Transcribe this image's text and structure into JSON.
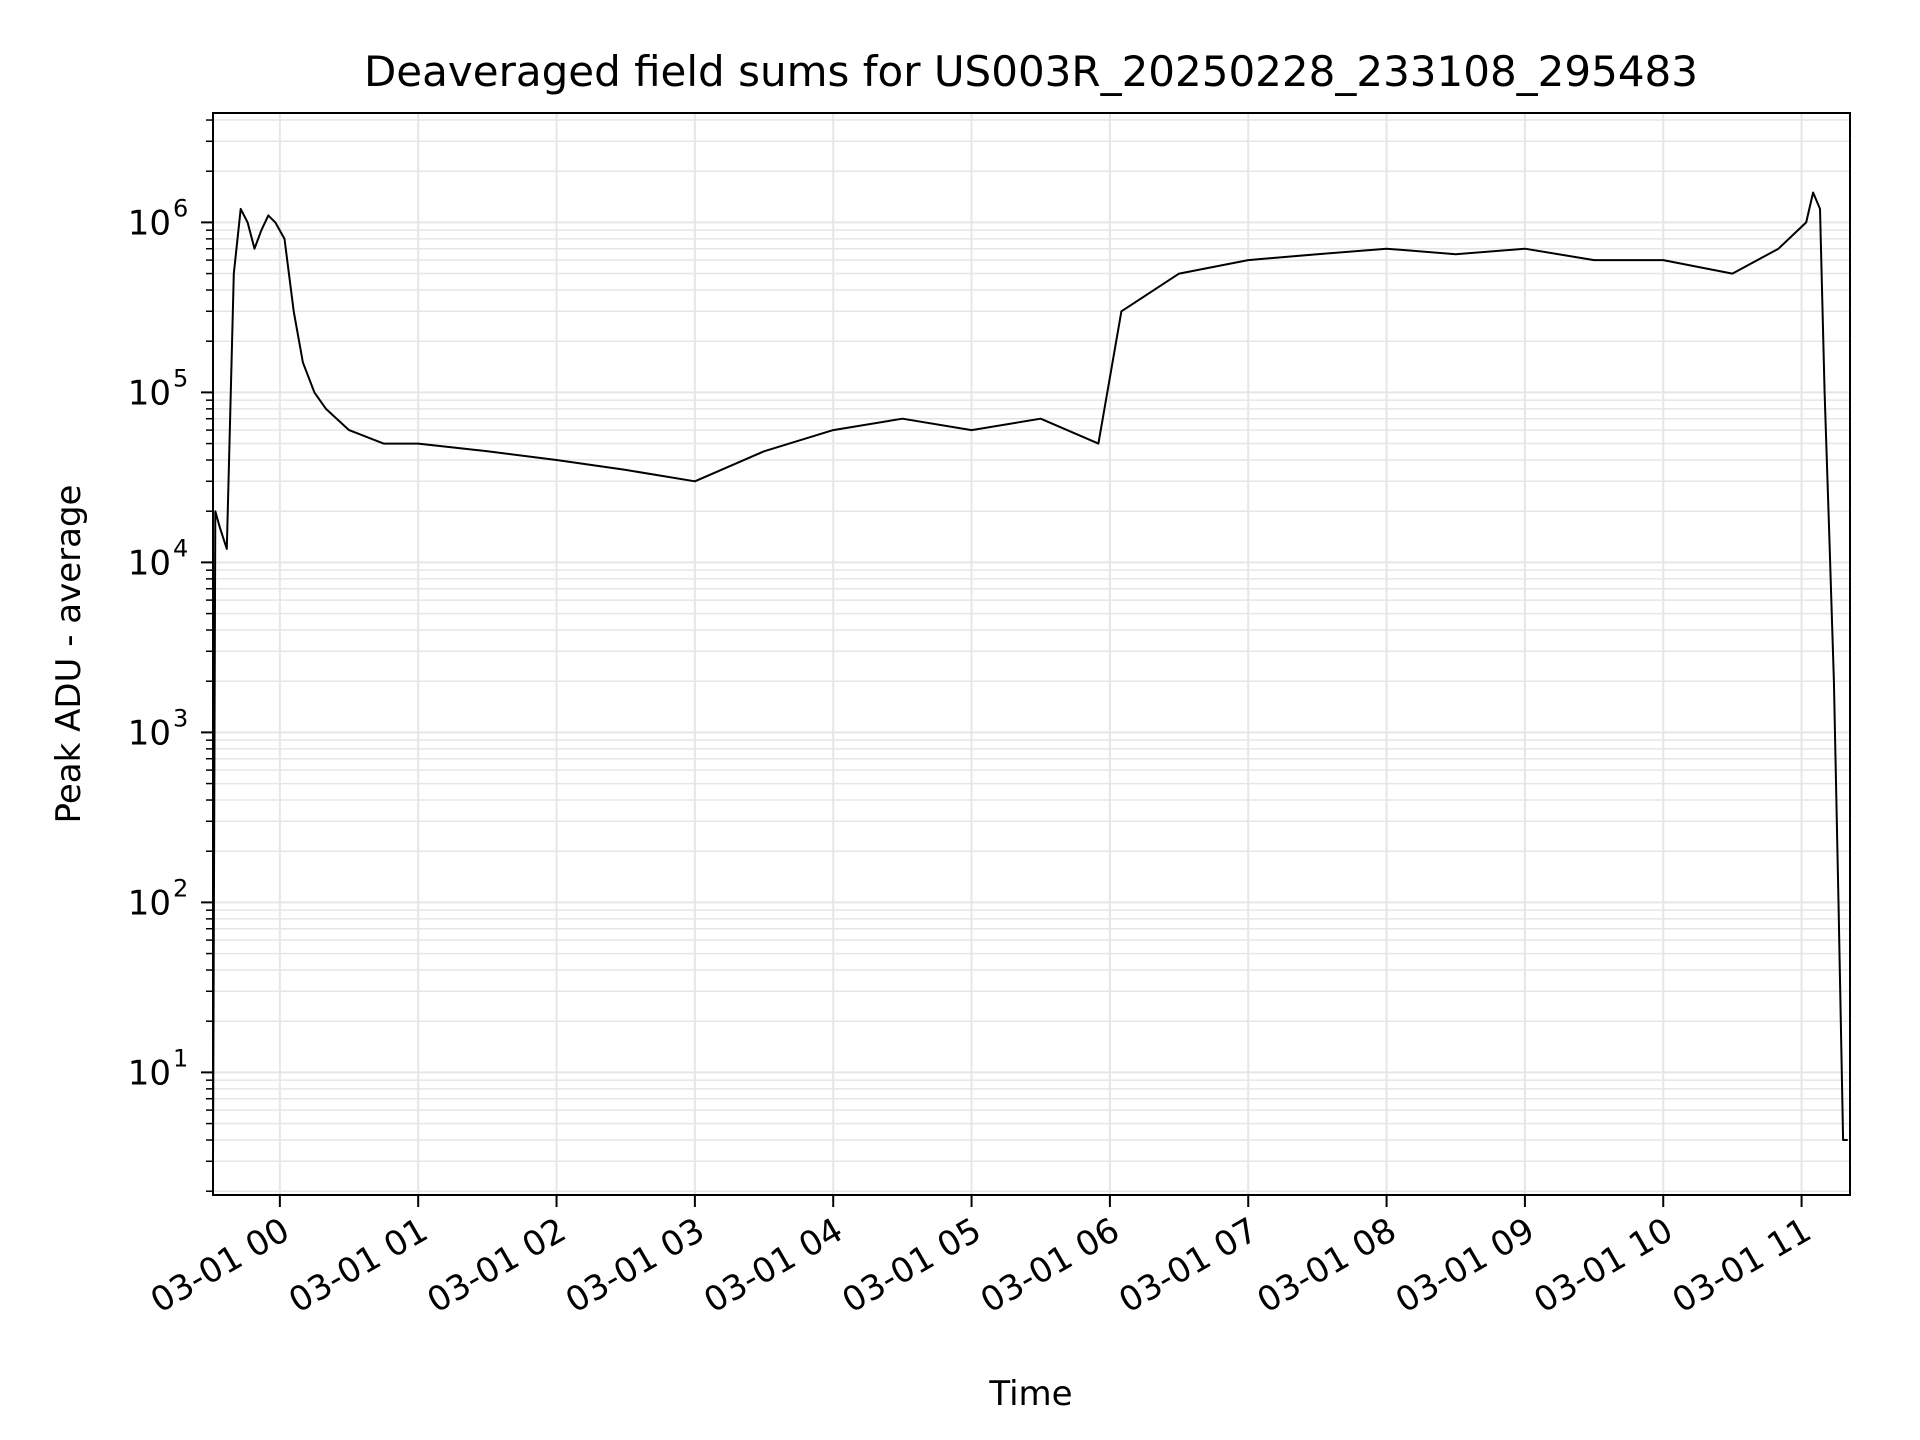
{
  "chart_data": {
    "type": "line",
    "title": "Deaveraged field sums for US003R_20250228_233108_295483",
    "xlabel": "Time",
    "ylabel": "Peak ADU - average",
    "yscale": "log",
    "ylim": [
      1.9,
      4400000
    ],
    "xlim": [
      "2025-02-28 23:31",
      "2025-03-01 11:21"
    ],
    "grid": true,
    "grid_color": "#e6e6e6",
    "line_color": "#000000",
    "x_tick_labels": [
      "03-01 00",
      "03-01 01",
      "03-01 02",
      "03-01 03",
      "03-01 04",
      "03-01 05",
      "03-01 06",
      "03-01 07",
      "03-01 08",
      "03-01 09",
      "03-01 10",
      "03-01 11"
    ],
    "y_tick_labels": [
      {
        "base": "10",
        "exp": "1"
      },
      {
        "base": "10",
        "exp": "2"
      },
      {
        "base": "10",
        "exp": "3"
      },
      {
        "base": "10",
        "exp": "4"
      },
      {
        "base": "10",
        "exp": "5"
      },
      {
        "base": "10",
        "exp": "6"
      }
    ],
    "series": [
      {
        "x": [
          "2025-02-28 23:31",
          "2025-02-28 23:32",
          "2025-02-28 23:34",
          "2025-02-28 23:37",
          "2025-02-28 23:40",
          "2025-02-28 23:43",
          "2025-02-28 23:46",
          "2025-02-28 23:49",
          "2025-02-28 23:52",
          "2025-02-28 23:55",
          "2025-02-28 23:58",
          "2025-03-01 00:02",
          "2025-03-01 00:06",
          "2025-03-01 00:10",
          "2025-03-01 00:15",
          "2025-03-01 00:20",
          "2025-03-01 00:30",
          "2025-03-01 00:45",
          "2025-03-01 01:00",
          "2025-03-01 01:30",
          "2025-03-01 02:00",
          "2025-03-01 02:30",
          "2025-03-01 03:00",
          "2025-03-01 03:30",
          "2025-03-01 04:00",
          "2025-03-01 04:30",
          "2025-03-01 05:00",
          "2025-03-01 05:30",
          "2025-03-01 05:55",
          "2025-03-01 06:05",
          "2025-03-01 06:30",
          "2025-03-01 07:00",
          "2025-03-01 07:30",
          "2025-03-01 08:00",
          "2025-03-01 08:30",
          "2025-03-01 09:00",
          "2025-03-01 09:30",
          "2025-03-01 10:00",
          "2025-03-01 10:30",
          "2025-03-01 10:50",
          "2025-03-01 11:02",
          "2025-03-01 11:05",
          "2025-03-01 11:08",
          "2025-03-01 11:10",
          "2025-03-01 11:12",
          "2025-03-01 11:14",
          "2025-03-01 11:16",
          "2025-03-01 11:18",
          "2025-03-01 11:20"
        ],
        "y": [
          3,
          20000,
          16000,
          12000,
          500000,
          1200000,
          1000000,
          700000,
          900000,
          1100000,
          1000000,
          800000,
          300000,
          150000,
          100000,
          80000,
          60000,
          50000,
          50000,
          45000,
          40000,
          35000,
          30000,
          45000,
          60000,
          70000,
          60000,
          70000,
          50000,
          300000,
          500000,
          600000,
          650000,
          700000,
          650000,
          700000,
          600000,
          600000,
          500000,
          700000,
          1000000,
          1500000,
          1200000,
          100000,
          15000,
          2000,
          100,
          4,
          4
        ]
      }
    ]
  }
}
